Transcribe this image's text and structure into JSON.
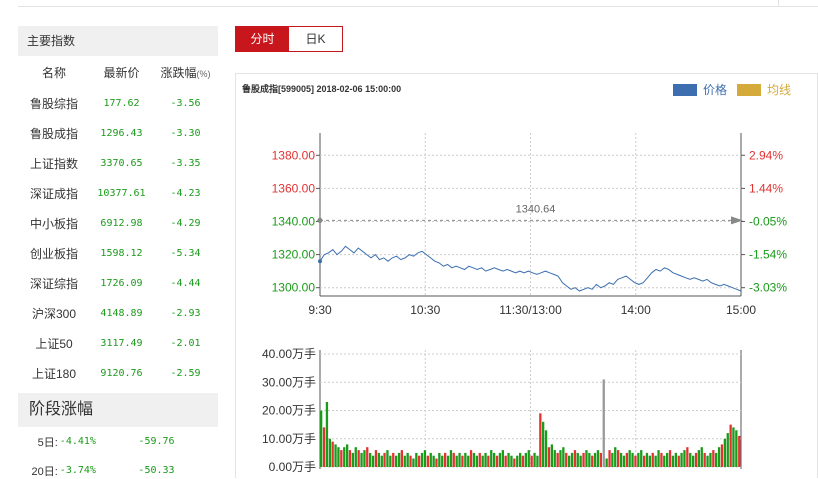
{
  "index_panel": {
    "title": "主要指数",
    "headers": {
      "name": "名称",
      "price": "最新价",
      "change": "涨跌幅",
      "unit": "(%)"
    },
    "rows": [
      {
        "name": "鲁股综指",
        "price": "177.62",
        "change": "-3.56"
      },
      {
        "name": "鲁股成指",
        "price": "1296.43",
        "change": "-3.30"
      },
      {
        "name": "上证指数",
        "price": "3370.65",
        "change": "-3.35"
      },
      {
        "name": "深证成指",
        "price": "10377.61",
        "change": "-4.23"
      },
      {
        "name": "中小板指",
        "price": "6912.98",
        "change": "-4.29"
      },
      {
        "name": "创业板指",
        "price": "1598.12",
        "change": "-5.34"
      },
      {
        "name": "深证综指",
        "price": "1726.09",
        "change": "-4.44"
      },
      {
        "name": "沪深300",
        "price": "4148.89",
        "change": "-2.93"
      },
      {
        "name": "上证50",
        "price": "3117.49",
        "change": "-2.01"
      },
      {
        "name": "上证180",
        "price": "9120.76",
        "change": "-2.59"
      }
    ]
  },
  "stage_panel": {
    "title": "阶段涨幅",
    "rows": [
      {
        "label": "5日:",
        "pct": "-4.41%",
        "value": "-59.76"
      },
      {
        "label": "20日:",
        "pct": "-3.74%",
        "value": "-50.33"
      }
    ]
  },
  "tabs": [
    {
      "label": "分时",
      "active": true
    },
    {
      "label": "日K",
      "active": false
    }
  ],
  "chart_header": {
    "title": "鲁股成指[599005] 2018-02-06 15:00:00",
    "legend_price": "价格",
    "legend_avg": "均线",
    "price_color": "#3d6fb0",
    "avg_color": "#d4aa3a"
  },
  "colors": {
    "up": "#e33232",
    "down": "#1a9b1a",
    "accent": "#c8161d"
  },
  "chart_data": [
    {
      "type": "line",
      "x_ticks": [
        "9:30",
        "10:30",
        "11:30/13:00",
        "14:00",
        "15:00"
      ],
      "y_ticks": [
        "1380.00",
        "1360.00",
        "1340.00",
        "1320.00",
        "1300.00"
      ],
      "y_ticks_right": [
        "2.94%",
        "1.44%",
        "-0.05%",
        "-1.54%",
        "-3.03%"
      ],
      "ylim": [
        1298,
        1385
      ],
      "reference": {
        "value": 1340.64,
        "label": "1340.64"
      },
      "series": [
        {
          "name": "价格",
          "values": [
            1316,
            1320,
            1321,
            1323,
            1320,
            1322,
            1325,
            1323,
            1321,
            1324,
            1322,
            1320,
            1318,
            1320,
            1317,
            1318,
            1316,
            1318,
            1319,
            1317,
            1318,
            1320,
            1319,
            1321,
            1322,
            1320,
            1318,
            1316,
            1315,
            1313,
            1314,
            1312,
            1313,
            1312,
            1311,
            1313,
            1312,
            1311,
            1312,
            1310,
            1311,
            1312,
            1311,
            1310,
            1311,
            1310,
            1309,
            1310,
            1309,
            1310,
            1309,
            1308,
            1309,
            1310,
            1309,
            1308,
            1307,
            1303,
            1301,
            1299,
            1300,
            1298,
            1299,
            1300,
            1299,
            1302,
            1300,
            1301,
            1303,
            1302,
            1305,
            1306,
            1307,
            1305,
            1303,
            1302,
            1303,
            1306,
            1309,
            1311,
            1310,
            1312,
            1311,
            1309,
            1308,
            1307,
            1306,
            1305,
            1306,
            1305,
            1304,
            1305,
            1303,
            1302,
            1301,
            1302,
            1301,
            1300,
            1299,
            1298
          ]
        }
      ]
    },
    {
      "type": "bar",
      "y_ticks": [
        "40.00万手",
        "30.00万手",
        "20.00万手",
        "10.00万手",
        "0.00万手"
      ],
      "ylim": [
        0,
        40
      ],
      "series": [
        {
          "name": "成交量",
          "values": [
            20,
            14,
            23,
            10,
            9,
            8,
            7,
            6,
            7,
            8,
            6,
            5,
            7,
            6,
            5,
            6,
            7,
            5,
            4,
            6,
            5,
            4,
            5,
            6,
            4,
            5,
            4,
            5,
            6,
            4,
            5,
            4,
            3,
            5,
            4,
            5,
            6,
            4,
            5,
            4,
            3,
            5,
            4,
            5,
            4,
            6,
            5,
            4,
            5,
            4,
            5,
            4,
            6,
            5,
            4,
            5,
            4,
            5,
            4,
            6,
            5,
            4,
            5,
            6,
            4,
            5,
            4,
            3,
            4,
            5,
            4,
            5,
            6,
            4,
            5,
            4,
            19,
            16,
            13,
            7,
            8,
            6,
            5,
            6,
            7,
            5,
            4,
            5,
            6,
            5,
            4,
            5,
            6,
            5,
            4,
            5,
            6,
            5,
            31,
            3,
            6,
            5,
            7,
            6,
            5,
            4,
            5,
            6,
            5,
            4,
            5,
            6,
            4,
            5,
            4,
            5,
            4,
            6,
            5,
            4,
            5,
            6,
            4,
            5,
            4,
            5,
            6,
            7,
            5,
            4,
            5,
            6,
            7,
            5,
            4,
            5,
            6,
            5,
            7,
            8,
            10,
            12,
            15,
            14,
            13,
            11
          ]
        }
      ]
    }
  ]
}
